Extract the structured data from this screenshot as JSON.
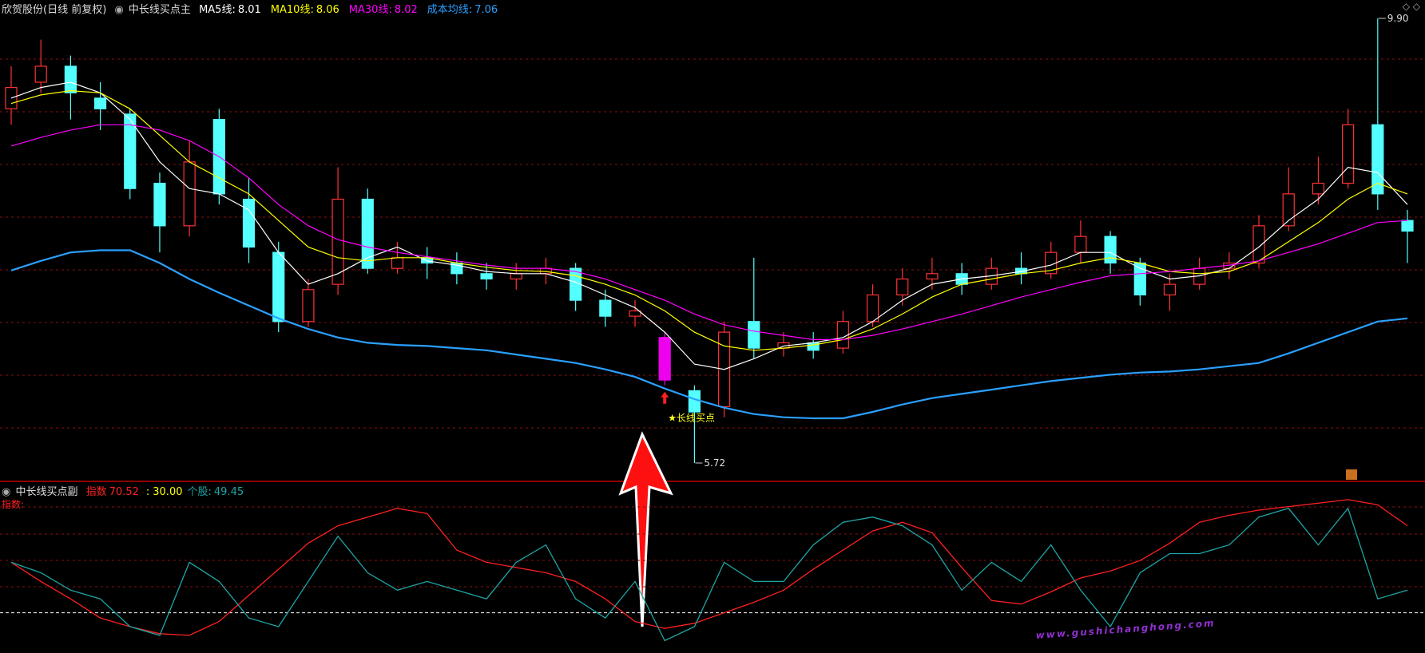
{
  "header": {
    "title": "欣贺股份(日线 前复权)",
    "indicator": "中长线买点主"
  },
  "chart_data": [
    {
      "type": "candlestick",
      "up_color": "#ff3232",
      "down_color": "#54ffff",
      "grid": true,
      "candles": [
        [
          9.05,
          9.25,
          8.9,
          9.45
        ],
        [
          9.3,
          9.45,
          9.2,
          9.7
        ],
        [
          9.45,
          9.2,
          8.95,
          9.55
        ],
        [
          9.15,
          9.05,
          8.85,
          9.3
        ],
        [
          9.0,
          8.3,
          8.2,
          9.05
        ],
        [
          8.35,
          7.95,
          7.7,
          8.45
        ],
        [
          7.95,
          8.55,
          7.85,
          8.75
        ],
        [
          8.95,
          8.25,
          8.15,
          9.05
        ],
        [
          8.2,
          7.75,
          7.6,
          8.4
        ],
        [
          7.7,
          7.05,
          6.95,
          7.8
        ],
        [
          7.05,
          7.35,
          7.0,
          7.45
        ],
        [
          7.4,
          8.2,
          7.3,
          8.5
        ],
        [
          8.2,
          7.55,
          7.5,
          8.3
        ],
        [
          7.55,
          7.65,
          7.5,
          7.8
        ],
        [
          7.65,
          7.6,
          7.45,
          7.75
        ],
        [
          7.6,
          7.5,
          7.4,
          7.7
        ],
        [
          7.5,
          7.45,
          7.35,
          7.6
        ],
        [
          7.45,
          7.5,
          7.35,
          7.6
        ],
        [
          7.5,
          7.55,
          7.4,
          7.65
        ],
        [
          7.55,
          7.25,
          7.15,
          7.6
        ],
        [
          7.25,
          7.1,
          7.0,
          7.35
        ],
        [
          7.1,
          7.15,
          7.0,
          7.25
        ],
        [
          6.9,
          6.5,
          6.45,
          6.95
        ],
        [
          6.4,
          6.2,
          5.72,
          6.45
        ],
        [
          6.25,
          6.95,
          6.15,
          7.05
        ],
        [
          7.05,
          6.8,
          6.7,
          7.65
        ],
        [
          6.8,
          6.85,
          6.72,
          6.95
        ],
        [
          6.85,
          6.78,
          6.7,
          6.95
        ],
        [
          6.8,
          7.05,
          6.75,
          7.15
        ],
        [
          7.05,
          7.3,
          7.0,
          7.4
        ],
        [
          7.3,
          7.45,
          7.2,
          7.55
        ],
        [
          7.45,
          7.5,
          7.35,
          7.65
        ],
        [
          7.5,
          7.4,
          7.3,
          7.6
        ],
        [
          7.4,
          7.55,
          7.35,
          7.65
        ],
        [
          7.55,
          7.5,
          7.4,
          7.7
        ],
        [
          7.5,
          7.7,
          7.45,
          7.8
        ],
        [
          7.7,
          7.85,
          7.6,
          8.0
        ],
        [
          7.85,
          7.6,
          7.5,
          7.9
        ],
        [
          7.6,
          7.3,
          7.2,
          7.65
        ],
        [
          7.3,
          7.4,
          7.15,
          7.5
        ],
        [
          7.4,
          7.55,
          7.35,
          7.65
        ],
        [
          7.55,
          7.6,
          7.45,
          7.7
        ],
        [
          7.6,
          7.95,
          7.55,
          8.05
        ],
        [
          7.95,
          8.25,
          7.9,
          8.5
        ],
        [
          8.25,
          8.35,
          8.15,
          8.6
        ],
        [
          8.35,
          8.9,
          8.3,
          9.05
        ],
        [
          8.9,
          8.25,
          8.1,
          9.9
        ],
        [
          8.0,
          7.9,
          7.6,
          8.1
        ]
      ],
      "signal": {
        "index": 22,
        "color": "#ee00ee",
        "label": "★长线买点"
      },
      "extreme_labels": [
        {
          "label": "9.90",
          "value": 9.9,
          "index": 46
        },
        {
          "label": "5.72",
          "value": 5.72,
          "index": 23
        }
      ],
      "series": [
        {
          "name": "MA5线",
          "color": "#ffffff",
          "current": 8.01,
          "values": [
            9.15,
            9.25,
            9.3,
            9.2,
            8.95,
            8.55,
            8.3,
            8.25,
            8.1,
            7.7,
            7.4,
            7.5,
            7.65,
            7.75,
            7.62,
            7.58,
            7.52,
            7.5,
            7.5,
            7.42,
            7.3,
            7.18,
            6.95,
            6.65,
            6.6,
            6.7,
            6.82,
            6.85,
            6.9,
            7.05,
            7.25,
            7.4,
            7.45,
            7.48,
            7.52,
            7.58,
            7.7,
            7.7,
            7.55,
            7.45,
            7.48,
            7.55,
            7.75,
            8.0,
            8.2,
            8.5,
            8.45,
            8.15
          ]
        },
        {
          "name": "MA10线",
          "color": "#ffff00",
          "current": 8.06,
          "values": [
            9.1,
            9.18,
            9.22,
            9.2,
            9.05,
            8.8,
            8.55,
            8.4,
            8.25,
            8.0,
            7.75,
            7.65,
            7.62,
            7.65,
            7.65,
            7.6,
            7.56,
            7.53,
            7.52,
            7.48,
            7.4,
            7.3,
            7.15,
            6.95,
            6.82,
            6.78,
            6.8,
            6.83,
            6.88,
            6.98,
            7.12,
            7.28,
            7.4,
            7.45,
            7.5,
            7.53,
            7.6,
            7.65,
            7.6,
            7.52,
            7.5,
            7.52,
            7.62,
            7.8,
            7.98,
            8.2,
            8.35,
            8.25
          ]
        },
        {
          "name": "MA30线",
          "color": "#ff00ff",
          "current": 8.02,
          "values": [
            8.7,
            8.78,
            8.85,
            8.9,
            8.9,
            8.85,
            8.75,
            8.6,
            8.4,
            8.15,
            7.95,
            7.82,
            7.75,
            7.7,
            7.66,
            7.62,
            7.58,
            7.55,
            7.55,
            7.52,
            7.45,
            7.35,
            7.25,
            7.12,
            7.02,
            6.96,
            6.92,
            6.88,
            6.88,
            6.92,
            6.98,
            7.05,
            7.12,
            7.2,
            7.28,
            7.35,
            7.42,
            7.48,
            7.5,
            7.52,
            7.55,
            7.58,
            7.62,
            7.7,
            7.78,
            7.88,
            7.98,
            8.0
          ]
        },
        {
          "name": "成本均线",
          "color": "#2aa0ff",
          "current": 7.06,
          "values": [
            7.53,
            7.62,
            7.7,
            7.72,
            7.72,
            7.6,
            7.45,
            7.32,
            7.2,
            7.08,
            6.98,
            6.9,
            6.85,
            6.83,
            6.82,
            6.8,
            6.78,
            6.74,
            6.7,
            6.66,
            6.6,
            6.53,
            6.42,
            6.32,
            6.24,
            6.18,
            6.15,
            6.14,
            6.14,
            6.2,
            6.27,
            6.33,
            6.37,
            6.41,
            6.45,
            6.49,
            6.52,
            6.55,
            6.57,
            6.58,
            6.6,
            6.63,
            6.66,
            6.75,
            6.85,
            6.95,
            7.05,
            7.08
          ]
        }
      ]
    },
    {
      "type": "line",
      "title": "中长线买点副",
      "axis_label": "指数:",
      "ylim": [
        0,
        100
      ],
      "reference": {
        "value": 30,
        "label": "30.00",
        "color": "#ffff00"
      },
      "series": [
        {
          "name": "指数",
          "color": "#ff2020",
          "current": 70.52,
          "values": [
            59,
            48,
            38,
            27,
            22,
            18,
            17,
            25,
            40,
            55,
            70,
            80,
            85,
            90,
            87,
            66,
            59,
            56,
            53,
            48,
            38,
            25,
            21,
            24,
            30,
            36,
            43,
            55,
            66,
            77,
            82,
            76,
            56,
            37,
            35,
            42,
            50,
            54,
            60,
            70,
            82,
            86,
            89,
            91,
            93,
            95,
            92,
            80
          ]
        },
        {
          "name": "个股",
          "color": "#1ea5a5",
          "current": 49.45,
          "values": [
            59,
            53,
            43,
            38,
            22,
            17,
            59,
            48,
            27,
            22,
            48,
            74,
            53,
            43,
            48,
            43,
            38,
            59,
            69,
            38,
            27,
            48,
            14,
            22,
            59,
            48,
            48,
            69,
            82,
            85,
            80,
            69,
            43,
            59,
            48,
            69,
            43,
            22,
            53,
            64,
            64,
            69,
            85,
            90,
            69,
            90,
            38,
            43
          ]
        }
      ]
    }
  ],
  "watermark": "www.gushichanghong.com"
}
